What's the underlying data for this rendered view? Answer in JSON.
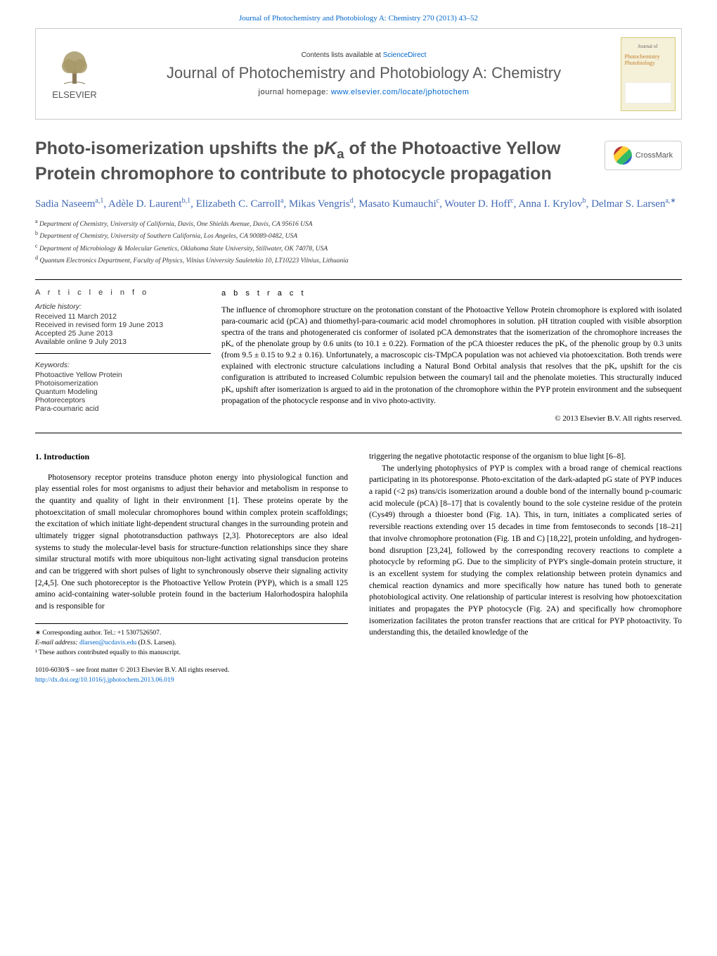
{
  "top_link": "Journal of Photochemistry and Photobiology A: Chemistry 270 (2013) 43–52",
  "header": {
    "contents_prefix": "Contents lists available at ",
    "contents_link": "ScienceDirect",
    "journal_name": "Journal of Photochemistry and Photobiology A: Chemistry",
    "homepage_prefix": "journal homepage: ",
    "homepage_link": "www.elsevier.com/locate/jphotochem",
    "logo_text": "ELSEVIER",
    "cover_word1": "Photochemistry",
    "cover_word2": "Photobiology"
  },
  "crossmark_text": "CrossMark",
  "title_pre": "Photo-isomerization upshifts the p",
  "title_sub": "a",
  "title_post": " of the Photoactive Yellow Protein chromophore to contribute to photocycle propagation",
  "authors_html": "Sadia Naseem<sup class='sup'>a,1</sup>, Adèle D. Laurent<sup class='sup'>b,1</sup>, Elizabeth C. Carroll<sup class='sup'>a</sup>, Mikas Vengris<sup class='sup'>d</sup>, Masato Kumauchi<sup class='sup'>c</sup>, Wouter D. Hoff<sup class='sup'>c</sup>, Anna I. Krylov<sup class='sup'>b</sup>, Delmar S. Larsen<sup class='sup'>a,∗</sup>",
  "affiliations": [
    {
      "sup": "a",
      "text": "Department of Chemistry, University of California, Davis, One Shields Avenue, Davis, CA 95616 USA"
    },
    {
      "sup": "b",
      "text": "Department of Chemistry, University of Southern California, Los Angeles, CA 90089-0482, USA"
    },
    {
      "sup": "c",
      "text": "Department of Microbiology & Molecular Genetics, Oklahoma State University, Stillwater, OK 74078, USA"
    },
    {
      "sup": "d",
      "text": "Quantum Electronics Department, Faculty of Physics, Vilnius University Sauletekio 10, LT10223 Vilnius, Lithuania"
    }
  ],
  "info_heading": "a r t i c l e   i n f o",
  "history": {
    "label": "Article history:",
    "received": "Received 11 March 2012",
    "revised": "Received in revised form 19 June 2013",
    "accepted": "Accepted 25 June 2013",
    "online": "Available online 9 July 2013"
  },
  "keywords": {
    "label": "Keywords:",
    "items": [
      "Photoactive Yellow Protein",
      "Photoisomerization",
      "Quantum Modeling",
      "Photoreceptors",
      "Para-coumaric acid"
    ]
  },
  "abstract": {
    "heading": "a b s t r a c t",
    "text": "The influence of chromophore structure on the protonation constant of the Photoactive Yellow Protein chromophore is explored with isolated para-coumaric acid (pCA) and thiomethyl-para-coumaric acid model chromophores in solution. pH titration coupled with visible absorption spectra of the trans and photogenerated cis conformer of isolated pCA demonstrates that the isomerization of the chromophore increases the pKₐ of the phenolate group by 0.6 units (to 10.1 ± 0.22). Formation of the pCA thioester reduces the pKₐ of the phenolic group by 0.3 units (from 9.5 ± 0.15 to 9.2 ± 0.16). Unfortunately, a macroscopic cis-TMpCA population was not achieved via photoexcitation. Both trends were explained with electronic structure calculations including a Natural Bond Orbital analysis that resolves that the pKₐ upshift for the cis configuration is attributed to increased Columbic repulsion between the coumaryl tail and the phenolate moieties. This structurally induced pKₐ upshift after isomerization is argued to aid in the protonation of the chromophore within the PYP protein environment and the subsequent propagation of the photocycle response and in vivo photo-activity.",
    "copyright": "© 2013 Elsevier B.V. All rights reserved."
  },
  "intro_heading": "1. Introduction",
  "col1_p1": "Photosensory receptor proteins transduce photon energy into physiological function and play essential roles for most organisms to adjust their behavior and metabolism in response to the quantity and quality of light in their environment [1]. These proteins operate by the photoexcitation of small molecular chromophores bound within complex protein scaffoldings; the excitation of which initiate light-dependent structural changes in the surrounding protein and ultimately trigger signal phototransduction pathways [2,3]. Photoreceptors are also ideal systems to study the molecular-level basis for structure-function relationships since they share similar structural motifs with more ubiquitous non-light activating signal transducion proteins and can be triggered with short pulses of light to synchronously observe their signaling activity [2,4,5]. One such photoreceptor is the Photoactive Yellow Protein (PYP), which is a small 125 amino acid-containing water-soluble protein found in the bacterium Halorhodospira halophila and is responsible for",
  "col2_p1": "triggering the negative phototactic response of the organism to blue light [6–8].",
  "col2_p2": "The underlying photophysics of PYP is complex with a broad range of chemical reactions participating in its photoresponse. Photo-excitation of the dark-adapted pG state of PYP induces a rapid (<2 ps) trans/cis isomerization around a double bond of the internally bound p-coumaric acid molecule (pCA) [8–17] that is covalently bound to the sole cysteine residue of the protein (Cys49) through a thioester bond (Fig. 1A). This, in turn, initiates a complicated series of reversible reactions extending over 15 decades in time from femtoseconds to seconds [18–21] that involve chromophore protonation (Fig. 1B and C) [18,22], protein unfolding, and hydrogen-bond disruption [23,24], followed by the corresponding recovery reactions to complete a photocycle by reforming pG. Due to the simplicity of PYP's single-domain protein structure, it is an excellent system for studying the complex relationship between protein dynamics and chemical reaction dynamics and more specifically how nature has tuned both to generate photobiological activity. One relationship of particular interest is resolving how photoexcitation initiates and propagates the PYP photocycle (Fig. 2A) and specifically how chromophore isomerization facilitates the proton transfer reactions that are critical for PYP photoactivity. To understanding this, the detailed knowledge of the",
  "footnotes": {
    "corr": "∗ Corresponding author. Tel.: +1 5307526507.",
    "email_label": "E-mail address: ",
    "email": "dlarsen@ucdavis.edu",
    "email_name": " (D.S. Larsen).",
    "equal": "¹ These authors contributed equally to this manuscript."
  },
  "bottom": {
    "line1": "1010-6030/$ – see front matter © 2013 Elsevier B.V. All rights reserved.",
    "doi": "http://dx.doi.org/10.1016/j.jphotochem.2013.06.019"
  },
  "colors": {
    "link": "#0066cc",
    "author": "#4169b5",
    "gray": "#505050"
  }
}
